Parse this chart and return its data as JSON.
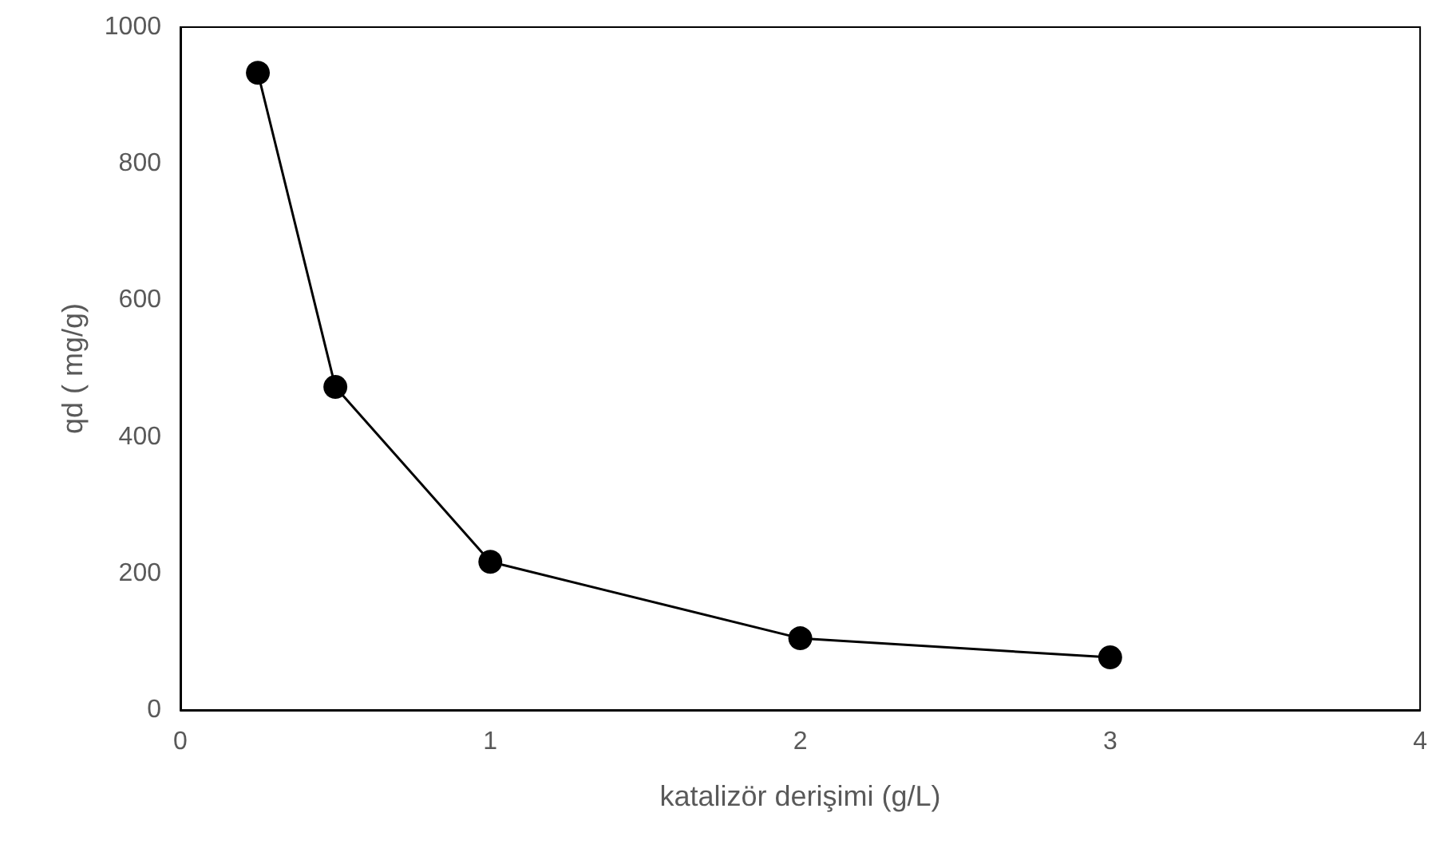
{
  "chart_data": {
    "type": "line",
    "xlabel": "katalizör derişimi (g/L)",
    "ylabel": "qd ( mg/g)",
    "x": [
      0.25,
      0.5,
      1,
      2,
      3
    ],
    "series": [
      {
        "color": "#000000",
        "values": [
          933,
          473,
          217,
          105,
          77
        ]
      }
    ],
    "xlim": [
      0,
      4
    ],
    "xticks": [
      0,
      1,
      2,
      3,
      4
    ],
    "ylim": [
      0,
      1000
    ],
    "yticks": [
      0,
      200,
      400,
      600,
      800,
      1000
    ],
    "grid": false,
    "marker": "circle",
    "line_style": "solid"
  }
}
